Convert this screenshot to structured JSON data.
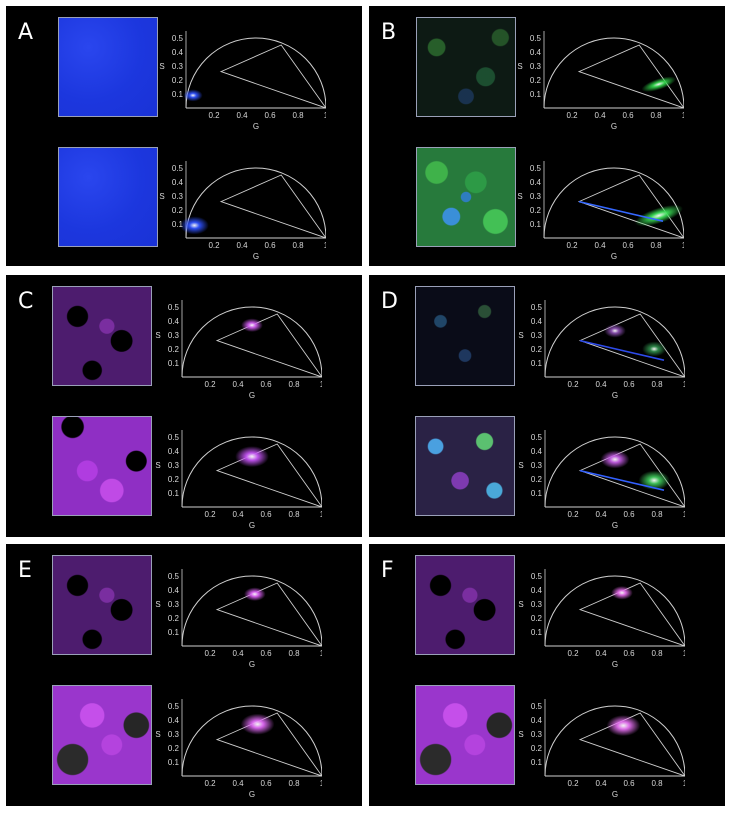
{
  "panels": [
    {
      "label": "A",
      "colors": [
        "#1b35e0",
        "#2c4bea"
      ],
      "rows": [
        {
          "image": "blue",
          "blobs": [
            {
              "g": 0.05,
              "s": 0.09,
              "color": "#2f52ff",
              "r": 8
            }
          ],
          "line": false
        },
        {
          "image": "blue",
          "blobs": [
            {
              "g": 0.06,
              "s": 0.09,
              "color": "#2f52ff",
              "r": 12
            }
          ],
          "line": false
        }
      ]
    },
    {
      "label": "B",
      "rows": [
        {
          "image": "green-sparse",
          "blobs": [
            {
              "g": 0.82,
              "s": 0.17,
              "color": "#31d54a",
              "r": 10,
              "elong": true
            }
          ],
          "line": false
        },
        {
          "image": "green-dense",
          "blobs": [
            {
              "g": 0.82,
              "s": 0.16,
              "color": "#3be157",
              "r": 14,
              "elong": true
            }
          ],
          "line": true,
          "lineColor": "#3568ff"
        }
      ]
    },
    {
      "label": "C",
      "rows": [
        {
          "image": "purple-sparse",
          "blobs": [
            {
              "g": 0.5,
              "s": 0.37,
              "color": "#d05cf0",
              "r": 9
            }
          ],
          "line": false
        },
        {
          "image": "purple-dense",
          "blobs": [
            {
              "g": 0.5,
              "s": 0.36,
              "color": "#c555f5",
              "r": 14
            }
          ],
          "line": false
        }
      ]
    },
    {
      "label": "D",
      "rows": [
        {
          "image": "mixed-sparse",
          "blobs": [
            {
              "g": 0.5,
              "s": 0.33,
              "color": "#8a4fb0",
              "r": 9
            },
            {
              "g": 0.78,
              "s": 0.2,
              "color": "#2e8a4a",
              "r": 10
            }
          ],
          "line": true,
          "lineColor": "#2d4bea"
        },
        {
          "image": "mixed-dense",
          "blobs": [
            {
              "g": 0.5,
              "s": 0.34,
              "color": "#c35ce3",
              "r": 12
            },
            {
              "g": 0.78,
              "s": 0.19,
              "color": "#3ec65a",
              "r": 13
            }
          ],
          "line": true,
          "lineColor": "#3260ff"
        }
      ]
    },
    {
      "label": "E",
      "rows": [
        {
          "image": "purple-sparse",
          "blobs": [
            {
              "g": 0.52,
              "s": 0.37,
              "color": "#dc60f5",
              "r": 9
            }
          ],
          "line": false
        },
        {
          "image": "purple-dense-grey",
          "blobs": [
            {
              "g": 0.54,
              "s": 0.37,
              "color": "#e069f5",
              "r": 14
            }
          ],
          "line": false
        }
      ]
    },
    {
      "label": "F",
      "rows": [
        {
          "image": "purple-sparse",
          "blobs": [
            {
              "g": 0.55,
              "s": 0.38,
              "color": "#e36ae8",
              "r": 9
            }
          ],
          "line": false
        },
        {
          "image": "purple-dense-grey",
          "blobs": [
            {
              "g": 0.56,
              "s": 0.36,
              "color": "#e771f3",
              "r": 14
            }
          ],
          "line": false
        }
      ]
    }
  ],
  "phasor": {
    "xlabel": "G",
    "ylabel": "S",
    "x_ticks": [
      "0.2",
      "0.4",
      "0.6",
      "0.8",
      "1"
    ],
    "y_ticks": [
      "0.1",
      "0.2",
      "0.3",
      "0.4",
      "0.5"
    ],
    "triangle": [
      [
        0.25,
        0.26
      ],
      [
        0.68,
        0.45
      ],
      [
        1.0,
        0.0
      ]
    ],
    "line_start": [
      0.25,
      0.26
    ],
    "line_end": [
      0.85,
      0.12
    ]
  }
}
